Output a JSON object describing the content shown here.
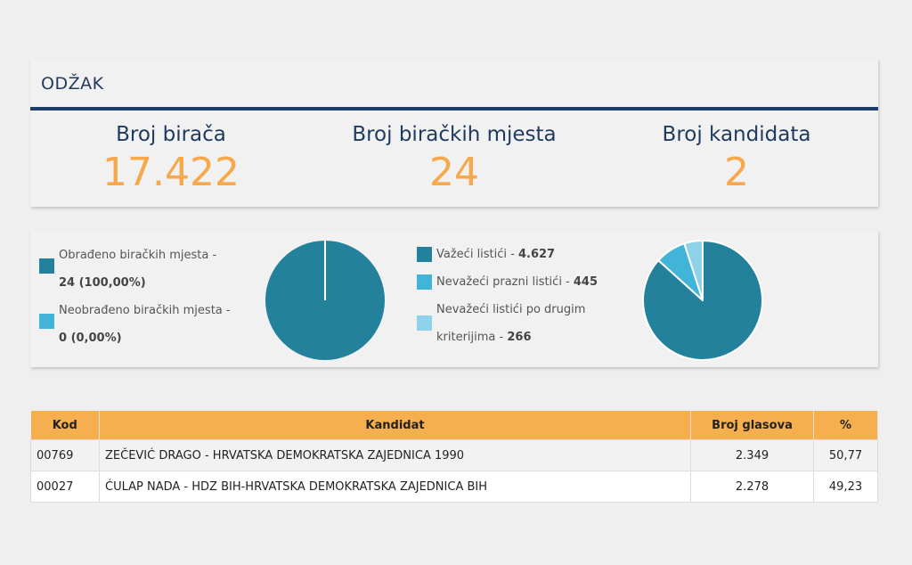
{
  "header": {
    "title": "ODŽAK"
  },
  "stats": [
    {
      "label": "Broj birača",
      "value": "17.422"
    },
    {
      "label": "Broj biračkih mjesta",
      "value": "24"
    },
    {
      "label": "Broj kandidata",
      "value": "2"
    }
  ],
  "polling_legend": {
    "processed_label": "Obrađeno biračkih mjesta -",
    "processed_value": "24 (100,00%)",
    "unprocessed_label": "Neobrađeno biračkih mjesta -",
    "unprocessed_value": "0 (0,00%)"
  },
  "ballot_legend": {
    "valid_label": "Važeći listići - ",
    "valid_value": "4.627",
    "blank_label": "Nevažeći prazni listići - ",
    "blank_value": "445",
    "other_label_1": "Nevažeći listići po drugim",
    "other_label_2": "kriterijima - ",
    "other_value": "266"
  },
  "colors": {
    "accent_orange": "#f6a84a",
    "header_navy": "#1e3a5f",
    "pie_dark": "#23819c",
    "pie_mid": "#41b4d8",
    "pie_light": "#8ed2ea"
  },
  "chart_data": [
    {
      "type": "pie",
      "categories": [
        "Obrađeno biračkih mjesta",
        "Neobrađeno biračkih mjesta"
      ],
      "values": [
        24,
        0
      ]
    },
    {
      "type": "pie",
      "categories": [
        "Važeći listići",
        "Nevažeći prazni listići",
        "Nevažeći listići po drugim kriterijima"
      ],
      "values": [
        4627,
        445,
        266
      ]
    }
  ],
  "table": {
    "headers": {
      "code": "Kod",
      "candidate": "Kandidat",
      "votes": "Broj glasova",
      "pct": "%"
    },
    "rows": [
      {
        "code": "00769",
        "candidate": "ZEČEVIĆ DRAGO - HRVATSKA DEMOKRATSKA ZAJEDNICA 1990",
        "votes": "2.349",
        "pct": "50,77"
      },
      {
        "code": "00027",
        "candidate": "ĆULAP NADA - HDZ BIH-HRVATSKA DEMOKRATSKA ZAJEDNICA BIH",
        "votes": "2.278",
        "pct": "49,23"
      }
    ]
  }
}
